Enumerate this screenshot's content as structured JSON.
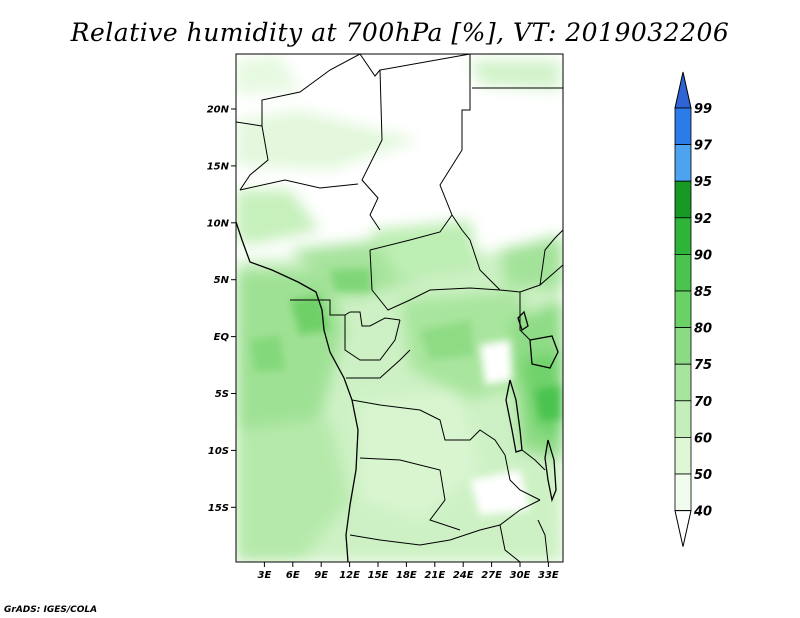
{
  "title": "Relative humidity at 700hPa [%], VT: 2019032206",
  "credit": "GrADS: IGES/COLA",
  "map": {
    "lon_range": [
      0,
      34.5
    ],
    "lat_range": [
      -20,
      24.5
    ],
    "lat_labels": [
      "20N",
      "15N",
      "10N",
      "5N",
      "EQ",
      "5S",
      "10S",
      "15S"
    ],
    "lon_labels": [
      "3E",
      "6E",
      "9E",
      "12E",
      "15E",
      "18E",
      "21E",
      "24E",
      "27E",
      "30E",
      "33E"
    ]
  },
  "colorbar": {
    "levels": [
      "99",
      "97",
      "95",
      "92",
      "90",
      "85",
      "80",
      "75",
      "70",
      "60",
      "50",
      "40"
    ],
    "colors": [
      "#2f63d6",
      "#2b7ce8",
      "#4ea3f0",
      "#169a24",
      "#2fb43a",
      "#4bc34f",
      "#69d165",
      "#8adb83",
      "#a7e49e",
      "#c4efbb",
      "#def7d6",
      "#f2fcee"
    ]
  }
}
